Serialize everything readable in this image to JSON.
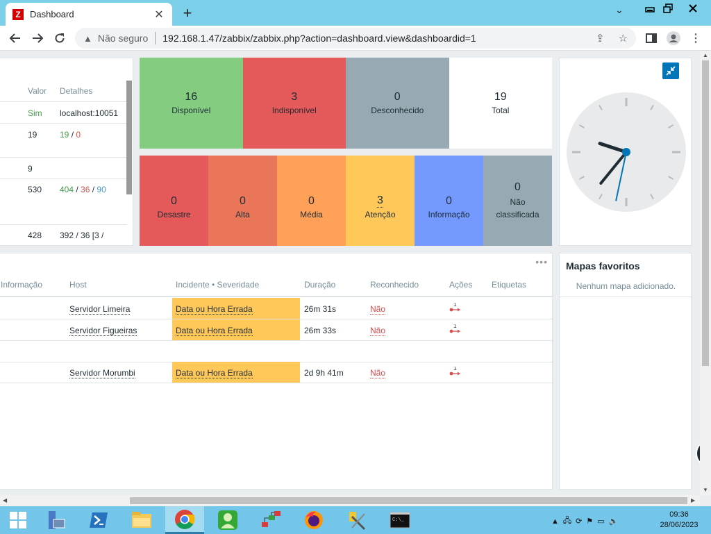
{
  "browser": {
    "tab_title": "Dashboard",
    "tab_favicon": "Z",
    "security_label": "Não seguro",
    "url": "192.168.1.47/zabbix/zabbix.php?action=dashboard.view&dashboardid=1"
  },
  "left_table": {
    "headers": {
      "value": "Valor",
      "details": "Detalhes"
    },
    "rows": [
      {
        "value": "Sim",
        "details": "localhost:10051"
      },
      {
        "value": "19",
        "details_green": "19",
        "details_sep": " / ",
        "details_red": "0"
      },
      {
        "value": "9"
      },
      {
        "value": "530",
        "details_green": "404",
        "details_sep1": " / ",
        "details_red": "36",
        "details_sep2": " / ",
        "details_blue": "90"
      },
      {
        "value": "428",
        "details": "392 / 36 [3 /"
      }
    ]
  },
  "host_availability": [
    {
      "count": "16",
      "label": "Disponível",
      "color": "#84cc80"
    },
    {
      "count": "3",
      "label": "Indisponível",
      "color": "#e45959"
    },
    {
      "count": "0",
      "label": "Desconhecido",
      "color": "#97aab3"
    },
    {
      "count": "19",
      "label": "Total",
      "color": "#ffffff"
    }
  ],
  "severity": [
    {
      "count": "0",
      "label": "Desastre",
      "color": "#e45959"
    },
    {
      "count": "0",
      "label": "Alta",
      "color": "#e97659"
    },
    {
      "count": "0",
      "label": "Média",
      "color": "#ffa059"
    },
    {
      "count": "3",
      "label": "Atenção",
      "color": "#ffc859"
    },
    {
      "count": "0",
      "label": "Informação",
      "color": "#7499ff"
    },
    {
      "count": "0",
      "label": "Não classificada",
      "color": "#97aab3"
    }
  ],
  "clock": {
    "hours": 9,
    "minutes": 36,
    "seconds": 32
  },
  "problems": {
    "headers": {
      "info": "Informação",
      "host": "Host",
      "incident": "Incidente • Severidade",
      "duration": "Duração",
      "ack": "Reconhecido",
      "actions": "Ações",
      "tags": "Etiquetas"
    },
    "rows": [
      {
        "host": "Servidor Limeira",
        "incident": "Data ou Hora Errada",
        "duration": "26m 31s",
        "ack": "Não",
        "actions_count": "1"
      },
      {
        "host": "Servidor Figueiras",
        "incident": "Data ou Hora Errada",
        "duration": "26m 33s",
        "ack": "Não",
        "actions_count": "1"
      },
      {
        "host": "Servidor Morumbi",
        "incident": "Data ou Hora Errada",
        "duration": "2d 9h 41m",
        "ack": "Não",
        "actions_count": "1"
      }
    ]
  },
  "maps": {
    "title": "Mapas favoritos",
    "empty": "Nenhum mapa adicionado."
  },
  "taskbar": {
    "time": "09:36",
    "date": "28/06/2023"
  }
}
